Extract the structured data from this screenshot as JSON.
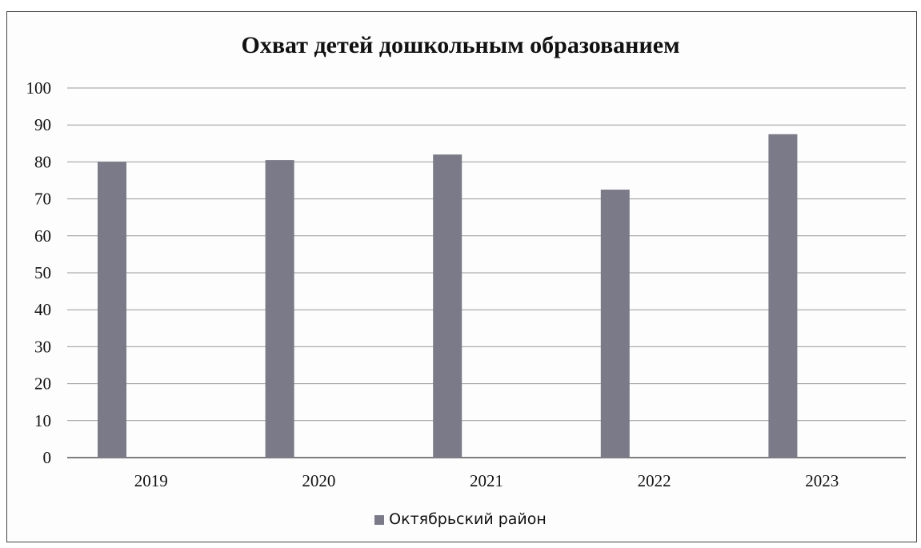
{
  "chart_data": {
    "type": "bar",
    "title": "Охват детей дошкольным образованием",
    "categories": [
      "2019",
      "2020",
      "2021",
      "2022",
      "2023"
    ],
    "series": [
      {
        "name": "Октябрьский район",
        "values": [
          80,
          80.5,
          82,
          72.5,
          87.5
        ],
        "color": "#7a7a88"
      }
    ],
    "ylim": [
      0,
      100
    ],
    "yticks": [
      "0",
      "10",
      "20",
      "30",
      "40",
      "50",
      "60",
      "70",
      "80",
      "90",
      "100"
    ],
    "grid": true,
    "legend_position": "bottom"
  }
}
